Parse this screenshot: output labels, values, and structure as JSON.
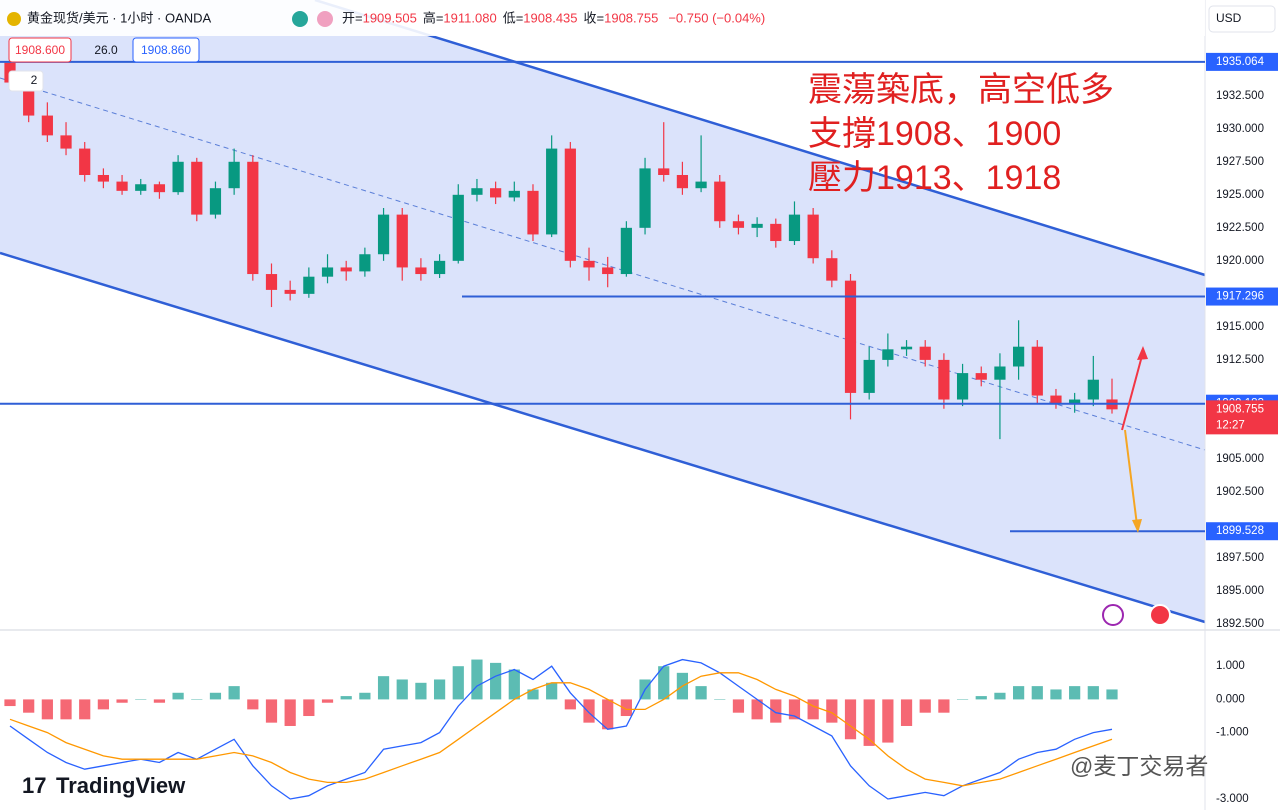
{
  "header": {
    "symbol": "黄金现货/美元 · 1小时 · OANDA",
    "ohlc": [
      {
        "label": "开=",
        "value": "1909.505"
      },
      {
        "label": "高=",
        "value": "1911.080"
      },
      {
        "label": "低=",
        "value": "1908.435"
      },
      {
        "label": "收=",
        "value": "1908.755"
      }
    ],
    "change": "−0.750 (−0.04%)",
    "currency": "USD",
    "bid": "1908.600",
    "spread": "26.0",
    "ask": "1908.860",
    "indicators": "2"
  },
  "annotations": [
    "震蕩築底，高空低多",
    "支撐1908、1900",
    "壓力1913、1918"
  ],
  "watermarks": {
    "brand": "TradingView",
    "author": "@麦丁交易者"
  },
  "chart_data": [
    {
      "type": "candlestick",
      "up_color": "#089981",
      "down_color": "#f23645",
      "ylim": [
        1892.2,
        1939.75
      ],
      "yticks": [
        {
          "value": 1932.5,
          "label": "1932.500"
        },
        {
          "value": 1930,
          "label": "1930.000"
        },
        {
          "value": 1927.5,
          "label": "1927.500"
        },
        {
          "value": 1925,
          "label": "1925.000"
        },
        {
          "value": 1922.5,
          "label": "1922.500"
        },
        {
          "value": 1920,
          "label": "1920.000"
        },
        {
          "value": 1915,
          "label": "1915.000"
        },
        {
          "value": 1912.5,
          "label": "1912.500"
        },
        {
          "value": 1905,
          "label": "1905.000"
        },
        {
          "value": 1902.5,
          "label": "1902.500"
        },
        {
          "value": 1897.5,
          "label": "1897.500"
        },
        {
          "value": 1895,
          "label": "1895.000"
        },
        {
          "value": 1892.5,
          "label": "1892.500"
        }
      ],
      "levels": [
        {
          "value": 1935.064,
          "color": "#2962ff"
        },
        {
          "value": 1917.296,
          "color": "#2962ff"
        },
        {
          "value": 1909.183,
          "color": "#2962ff"
        },
        {
          "value": 1908.755,
          "color": "#f23645",
          "countdown": "12:27"
        },
        {
          "value": 1899.528,
          "color": "#2962ff"
        }
      ],
      "candles": [
        [
          1935,
          1935.5,
          1933,
          1933.5
        ],
        [
          1933.5,
          1934,
          1930.5,
          1931
        ],
        [
          1931,
          1932,
          1929,
          1929.5
        ],
        [
          1929.5,
          1930.5,
          1928,
          1928.5
        ],
        [
          1928.5,
          1929,
          1926,
          1926.5
        ],
        [
          1926.5,
          1927,
          1925.5,
          1926
        ],
        [
          1926,
          1926.5,
          1925,
          1925.3
        ],
        [
          1925.3,
          1926.2,
          1925,
          1925.8
        ],
        [
          1925.8,
          1926,
          1924.7,
          1925.2
        ],
        [
          1925.2,
          1928,
          1925,
          1927.5
        ],
        [
          1927.5,
          1927.8,
          1923,
          1923.5
        ],
        [
          1923.5,
          1926,
          1923.2,
          1925.5
        ],
        [
          1925.5,
          1928.5,
          1925,
          1927.5
        ],
        [
          1927.5,
          1928,
          1918.5,
          1919
        ],
        [
          1919,
          1919.8,
          1916.5,
          1917.8
        ],
        [
          1917.8,
          1918.5,
          1917,
          1917.5
        ],
        [
          1917.5,
          1919.5,
          1917.2,
          1918.8
        ],
        [
          1918.8,
          1920.5,
          1918.3,
          1919.5
        ],
        [
          1919.5,
          1920,
          1918.5,
          1919.2
        ],
        [
          1919.2,
          1921,
          1918.8,
          1920.5
        ],
        [
          1920.5,
          1924,
          1920,
          1923.5
        ],
        [
          1923.5,
          1924,
          1918.5,
          1919.5
        ],
        [
          1919.5,
          1920.2,
          1918.5,
          1919
        ],
        [
          1919,
          1920.5,
          1918.7,
          1920
        ],
        [
          1920,
          1925.8,
          1919.8,
          1925
        ],
        [
          1925,
          1926.2,
          1924.5,
          1925.5
        ],
        [
          1925.5,
          1926,
          1924.3,
          1924.8
        ],
        [
          1924.8,
          1926,
          1924.5,
          1925.3
        ],
        [
          1925.3,
          1925.8,
          1921.5,
          1922
        ],
        [
          1922,
          1929.5,
          1921.8,
          1928.5
        ],
        [
          1928.5,
          1929,
          1919.5,
          1920
        ],
        [
          1920,
          1921,
          1918.5,
          1919.5
        ],
        [
          1919.5,
          1920.3,
          1918,
          1919
        ],
        [
          1919,
          1923,
          1918.8,
          1922.5
        ],
        [
          1922.5,
          1927.8,
          1922,
          1927
        ],
        [
          1927,
          1930.5,
          1926,
          1926.5
        ],
        [
          1926.5,
          1927.5,
          1925,
          1925.5
        ],
        [
          1925.5,
          1929.5,
          1925.2,
          1926
        ],
        [
          1926,
          1926.5,
          1922.5,
          1923
        ],
        [
          1923,
          1923.5,
          1922,
          1922.5
        ],
        [
          1922.5,
          1923.3,
          1921.8,
          1922.8
        ],
        [
          1922.8,
          1923.2,
          1921,
          1921.5
        ],
        [
          1921.5,
          1924.5,
          1921.2,
          1923.5
        ],
        [
          1923.5,
          1924,
          1919.8,
          1920.2
        ],
        [
          1920.2,
          1920.8,
          1918,
          1918.5
        ],
        [
          1918.5,
          1919,
          1908,
          1910
        ],
        [
          1910,
          1913.5,
          1909.5,
          1912.5
        ],
        [
          1912.5,
          1914.5,
          1912,
          1913.3
        ],
        [
          1913.3,
          1914,
          1912.8,
          1913.5
        ],
        [
          1913.5,
          1914,
          1912,
          1912.5
        ],
        [
          1912.5,
          1913,
          1908.8,
          1909.5
        ],
        [
          1909.5,
          1912.2,
          1909,
          1911.5
        ],
        [
          1911.5,
          1912,
          1910.5,
          1911
        ],
        [
          1911,
          1913,
          1906.5,
          1912
        ],
        [
          1912,
          1915.5,
          1911,
          1913.5
        ],
        [
          1913.5,
          1914,
          1909.2,
          1909.8
        ],
        [
          1909.8,
          1910.3,
          1908.8,
          1909.2
        ],
        [
          1909.2,
          1910,
          1908.5,
          1909.5
        ],
        [
          1909.5,
          1912.8,
          1909,
          1911
        ],
        [
          1909.505,
          1911.08,
          1908.435,
          1908.755
        ]
      ]
    },
    {
      "type": "macd",
      "ylim": [
        -3.33,
        2.09
      ],
      "yticks": [
        {
          "value": 1,
          "label": "1.000"
        },
        {
          "value": 0,
          "label": "0.000"
        },
        {
          "value": -1,
          "label": "-1.000"
        },
        {
          "value": -3,
          "label": "-3.000"
        }
      ],
      "macd_color": "#2962ff",
      "signal_color": "#ff9800",
      "pos_color": "#26a69a",
      "neg_color": "#f23645",
      "macd": [
        -0.8,
        -1.2,
        -1.6,
        -1.9,
        -2.1,
        -2.0,
        -1.9,
        -1.8,
        -1.9,
        -1.6,
        -1.8,
        -1.5,
        -1.2,
        -2.0,
        -2.6,
        -3.0,
        -2.9,
        -2.6,
        -2.4,
        -2.2,
        -1.5,
        -1.4,
        -1.3,
        -1.0,
        -0.2,
        0.4,
        0.7,
        0.9,
        0.6,
        1.0,
        0.2,
        -0.4,
        -0.9,
        -0.8,
        0.3,
        1.0,
        1.2,
        1.1,
        0.8,
        0.4,
        0.0,
        -0.4,
        -0.5,
        -0.8,
        -1.1,
        -2.0,
        -2.6,
        -3.0,
        -2.9,
        -2.8,
        -2.9,
        -2.6,
        -2.4,
        -2.2,
        -1.8,
        -1.6,
        -1.5,
        -1.2,
        -1.0,
        -0.9
      ],
      "signal": [
        -0.6,
        -0.8,
        -1.0,
        -1.3,
        -1.5,
        -1.7,
        -1.8,
        -1.8,
        -1.8,
        -1.8,
        -1.8,
        -1.7,
        -1.6,
        -1.7,
        -1.9,
        -2.2,
        -2.4,
        -2.5,
        -2.5,
        -2.4,
        -2.2,
        -2.0,
        -1.8,
        -1.6,
        -1.2,
        -0.8,
        -0.4,
        0.0,
        0.3,
        0.5,
        0.5,
        0.3,
        0.0,
        -0.3,
        -0.3,
        0.0,
        0.4,
        0.7,
        0.8,
        0.8,
        0.6,
        0.3,
        0.1,
        -0.2,
        -0.4,
        -0.8,
        -1.2,
        -1.7,
        -2.1,
        -2.4,
        -2.5,
        -2.6,
        -2.5,
        -2.4,
        -2.2,
        -2.0,
        -1.8,
        -1.6,
        -1.4,
        -1.2
      ],
      "histogram": [
        -0.2,
        -0.4,
        -0.6,
        -0.6,
        -0.6,
        -0.3,
        -0.1,
        0.0,
        -0.1,
        0.2,
        0.0,
        0.2,
        0.4,
        -0.3,
        -0.7,
        -0.8,
        -0.5,
        -0.1,
        0.1,
        0.2,
        0.7,
        0.6,
        0.5,
        0.6,
        1.0,
        1.2,
        1.1,
        0.9,
        0.3,
        0.5,
        -0.3,
        -0.7,
        -0.9,
        -0.5,
        0.6,
        1.0,
        0.8,
        0.4,
        0.0,
        -0.4,
        -0.6,
        -0.7,
        -0.6,
        -0.6,
        -0.7,
        -1.2,
        -1.4,
        -1.3,
        -0.8,
        -0.4,
        -0.4,
        0.0,
        0.1,
        0.2,
        0.4,
        0.4,
        0.3,
        0.4,
        0.4,
        0.3
      ]
    }
  ]
}
